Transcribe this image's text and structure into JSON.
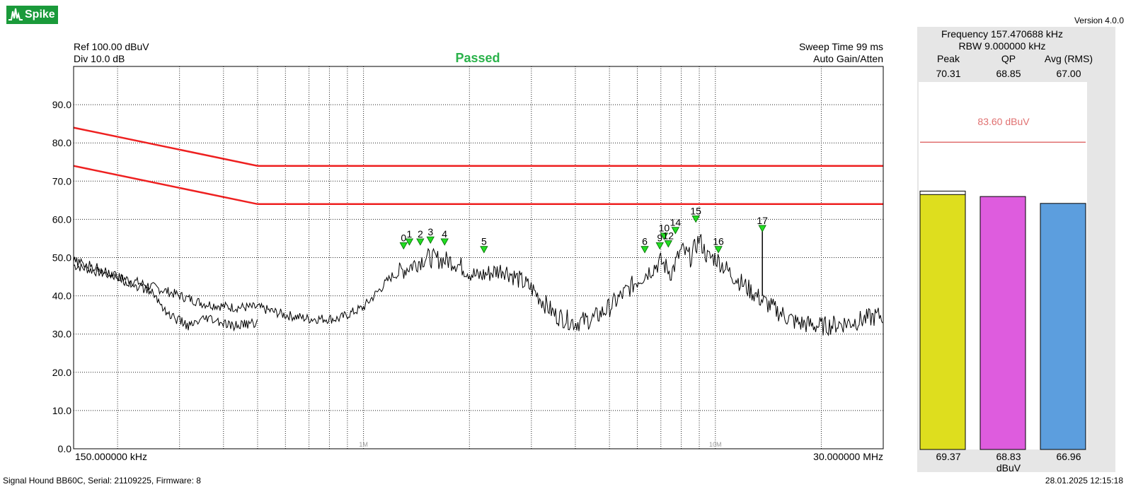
{
  "app": {
    "logo_text": "Spike",
    "version": "Version 4.0.0"
  },
  "header": {
    "ref": "Ref 100.00 dBuV",
    "div": "Div 10.0 dB",
    "status": "Passed",
    "sweep_time": "Sweep Time 99 ms",
    "gain": "Auto Gain/Atten"
  },
  "axis": {
    "start_label": "150.000000 kHz",
    "stop_label": "30.000000 MHz",
    "decade_labels": [
      "1M",
      "10M"
    ],
    "y_ticks": [
      "90.0",
      "80.0",
      "70.0",
      "60.0",
      "50.0",
      "40.0",
      "30.0",
      "20.0",
      "10.0",
      "0.0"
    ]
  },
  "side": {
    "frequency": "Frequency 157.470688 kHz",
    "rbw": "RBW 9.000000 kHz",
    "col_headers": [
      "Peak",
      "QP",
      "Avg (RMS)"
    ],
    "top_values": [
      "70.31",
      "68.85",
      "67.00"
    ],
    "limit_label": "83.60 dBuV",
    "bottom_values": [
      "69.37",
      "68.83",
      "66.96"
    ],
    "unit": "dBuV",
    "bar_colors": [
      "#dede1e",
      "#de5cde",
      "#5c9ede"
    ],
    "bar_values": [
      69.37,
      68.83,
      66.96
    ],
    "peak_hold": 70.31
  },
  "footer": {
    "device": "Signal Hound BB60C, Serial: 21109225, Firmware: 8",
    "datetime": "28.01.2025 12:15:18"
  },
  "colors": {
    "limit": "#ee2020",
    "marker": "#22dd22",
    "trace": "#000000",
    "passed": "#2ab24a"
  },
  "chart_data": {
    "type": "line",
    "xscale": "log",
    "xlim_hz": [
      150000,
      30000000
    ],
    "ylim": [
      0,
      100
    ],
    "ylabel": "dBuV",
    "grid": true,
    "limit_lines": [
      {
        "name": "",
        "points": [
          [
            150000,
            84
          ],
          [
            500000,
            74
          ],
          [
            30000000,
            74
          ]
        ]
      },
      {
        "name": "",
        "points": [
          [
            150000,
            74
          ],
          [
            500000,
            64
          ],
          [
            30000000,
            64
          ]
        ]
      }
    ],
    "series": [
      {
        "name": "",
        "x": [
          150000,
          180000,
          220000,
          280000,
          350000,
          420000,
          500000,
          600000,
          700000,
          850000,
          1000000,
          1200000,
          1500000,
          1800000,
          2100000,
          2500000,
          3000000,
          3500000,
          4000000,
          4500000,
          5000000,
          6000000,
          7000000,
          7500000,
          8000000,
          8500000,
          9000000,
          9500000,
          10000000,
          11000000,
          12000000,
          13500000,
          15000000,
          17000000,
          20000000,
          24000000,
          30000000
        ],
        "y": [
          48,
          46,
          44,
          41,
          38,
          37,
          37,
          35,
          34,
          34,
          37,
          45,
          50,
          49,
          45,
          47,
          42,
          35,
          33,
          34,
          37,
          44,
          49,
          46,
          52,
          50,
          55,
          50,
          50,
          46,
          43,
          39,
          36,
          33,
          32,
          33,
          35
        ]
      },
      {
        "name": "",
        "x": [
          150000,
          180000,
          220000,
          250000,
          280000,
          320000,
          360000,
          420000,
          500000
        ],
        "y": [
          49,
          47,
          43,
          41,
          35,
          32,
          34,
          32,
          33
        ]
      }
    ],
    "markers": [
      {
        "label": "0",
        "x": 1300000,
        "y": 53
      },
      {
        "label": "1",
        "x": 1350000,
        "y": 54
      },
      {
        "label": "2",
        "x": 1450000,
        "y": 54
      },
      {
        "label": "3",
        "x": 1550000,
        "y": 54.5
      },
      {
        "label": "4",
        "x": 1700000,
        "y": 54
      },
      {
        "label": "5",
        "x": 2200000,
        "y": 52
      },
      {
        "label": "6",
        "x": 6300000,
        "y": 52
      },
      {
        "label": "9",
        "x": 6950000,
        "y": 53
      },
      {
        "label": "10",
        "x": 7150000,
        "y": 55.5
      },
      {
        "label": "12",
        "x": 7350000,
        "y": 53.5
      },
      {
        "label": "14",
        "x": 7700000,
        "y": 57
      },
      {
        "label": "15",
        "x": 8800000,
        "y": 60
      },
      {
        "label": "16",
        "x": 10200000,
        "y": 52
      },
      {
        "label": "17",
        "x": 13600000,
        "y": 57.5
      }
    ]
  }
}
